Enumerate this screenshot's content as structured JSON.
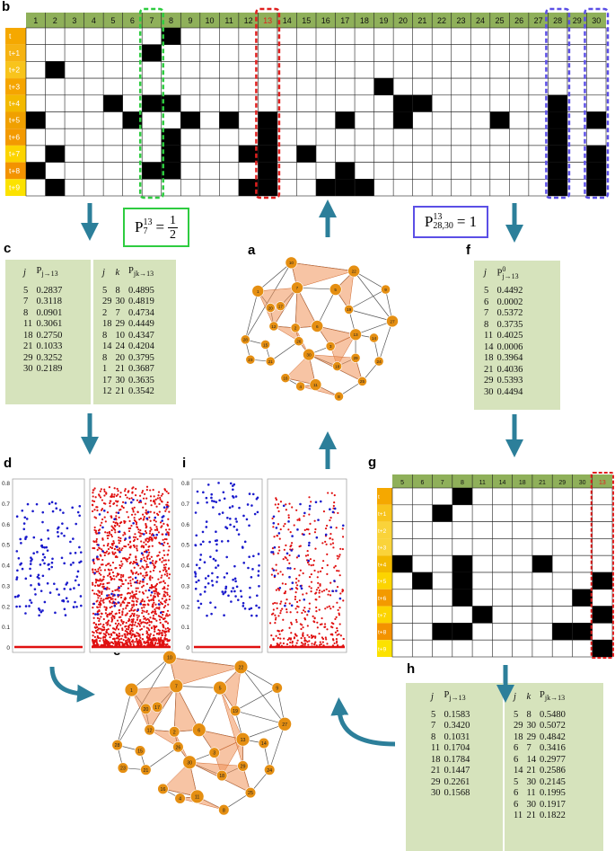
{
  "panel_labels": {
    "a": "a",
    "b": "b",
    "c": "c",
    "d": "d",
    "e": "e",
    "f": "f",
    "g": "g",
    "h": "h",
    "i": "i"
  },
  "grid_b": {
    "columns": [
      "1",
      "2",
      "3",
      "4",
      "5",
      "6",
      "7",
      "8",
      "9",
      "10",
      "11",
      "12",
      "13",
      "14",
      "15",
      "16",
      "17",
      "18",
      "19",
      "20",
      "21",
      "22",
      "23",
      "24",
      "25",
      "26",
      "27",
      "28",
      "29",
      "30"
    ],
    "highlight_column": "13",
    "rows": [
      "t",
      "t+1",
      "t+2",
      "t+3",
      "t+4",
      "t+5",
      "t+6",
      "t+7",
      "t+8",
      "t+9"
    ],
    "black_cells": [
      [
        7
      ],
      [
        6
      ],
      [
        1
      ],
      [
        18
      ],
      [
        4,
        6,
        7,
        19,
        20,
        27
      ],
      [
        0,
        5,
        8,
        10,
        12,
        16,
        19,
        24,
        27,
        29
      ],
      [
        7,
        12,
        27
      ],
      [
        1,
        7,
        11,
        12,
        14,
        27,
        29
      ],
      [
        0,
        6,
        7,
        12,
        16,
        27,
        29
      ],
      [
        1,
        11,
        12,
        15,
        16,
        17,
        27,
        29
      ]
    ],
    "row_colors": [
      "#f5a800",
      "#f6b312",
      "#f8c41c",
      "#f5a500",
      "#f3b900",
      "#f0a000",
      "#f39a00",
      "#fcd400",
      "#f39300",
      "#fce200"
    ]
  },
  "formula_green": {
    "P": "P",
    "sub": "7",
    "sup": "13",
    "eq": "=",
    "num": "1",
    "den": "2"
  },
  "formula_blue": {
    "P": "P",
    "sub": "28,30",
    "sup": "13",
    "eq": "= 1"
  },
  "table_c_left": {
    "header_j": "j",
    "header_p": "P",
    "header_p_sub": "j→13",
    "rows": [
      [
        "5",
        "0.2837"
      ],
      [
        "7",
        "0.3118"
      ],
      [
        "8",
        "0.0901"
      ],
      [
        "11",
        "0.3061"
      ],
      [
        "18",
        "0.2750"
      ],
      [
        "21",
        "0.1033"
      ],
      [
        "29",
        "0.3252"
      ],
      [
        "30",
        "0.2189"
      ]
    ]
  },
  "table_c_right": {
    "header_j": "j",
    "header_k": "k",
    "header_p": "P",
    "header_p_sub": "jk→13",
    "rows": [
      [
        "5",
        "8",
        "0.4895"
      ],
      [
        "29",
        "30",
        "0.4819"
      ],
      [
        "2",
        "7",
        "0.4734"
      ],
      [
        "18",
        "29",
        "0.4449"
      ],
      [
        "8",
        "10",
        "0.4347"
      ],
      [
        "14",
        "24",
        "0.4204"
      ],
      [
        "8",
        "20",
        "0.3795"
      ],
      [
        "1",
        "21",
        "0.3687"
      ],
      [
        "17",
        "30",
        "0.3635"
      ],
      [
        "12",
        "21",
        "0.3542"
      ]
    ]
  },
  "table_f": {
    "header_j": "j",
    "header_p": "P",
    "header_p_sup": "0",
    "header_p_sub": "j→13",
    "rows": [
      [
        "5",
        "0.4492"
      ],
      [
        "6",
        "0.0002"
      ],
      [
        "7",
        "0.5372"
      ],
      [
        "8",
        "0.3735"
      ],
      [
        "11",
        "0.4025"
      ],
      [
        "14",
        "0.0006"
      ],
      [
        "18",
        "0.3964"
      ],
      [
        "21",
        "0.4036"
      ],
      [
        "29",
        "0.5393"
      ],
      [
        "30",
        "0.4494"
      ]
    ]
  },
  "table_h_left": {
    "header_j": "j",
    "header_p": "P",
    "header_p_sub": "j→13",
    "rows": [
      [
        "5",
        "0.1583"
      ],
      [
        "7",
        "0.3420"
      ],
      [
        "8",
        "0.1031"
      ],
      [
        "11",
        "0.1704"
      ],
      [
        "18",
        "0.1784"
      ],
      [
        "21",
        "0.1447"
      ],
      [
        "29",
        "0.2261"
      ],
      [
        "30",
        "0.1568"
      ]
    ]
  },
  "table_h_right": {
    "header_j": "j",
    "header_k": "k",
    "header_p": "P",
    "header_p_sub": "jk→13",
    "rows": [
      [
        "5",
        "8",
        "0.5480"
      ],
      [
        "29",
        "30",
        "0.5072"
      ],
      [
        "18",
        "29",
        "0.4842"
      ],
      [
        "6",
        "7",
        "0.3416"
      ],
      [
        "6",
        "14",
        "0.2977"
      ],
      [
        "14",
        "21",
        "0.2586"
      ],
      [
        "5",
        "30",
        "0.2145"
      ],
      [
        "6",
        "11",
        "0.1995"
      ],
      [
        "6",
        "30",
        "0.1917"
      ],
      [
        "11",
        "21",
        "0.1822"
      ]
    ]
  },
  "grid_g": {
    "columns": [
      "5",
      "6",
      "7",
      "8",
      "11",
      "14",
      "18",
      "21",
      "29",
      "30",
      "13"
    ],
    "rows": [
      "t",
      "t+1",
      "t+2",
      "t+3",
      "t+4",
      "t+5",
      "t+6",
      "t+7",
      "t+8",
      "t+9"
    ],
    "black_cells": [
      [
        3
      ],
      [
        2
      ],
      [],
      [],
      [
        0,
        3,
        7
      ],
      [
        1,
        3,
        10
      ],
      [
        3,
        9
      ],
      [
        4,
        10
      ],
      [
        2,
        3,
        8,
        9
      ],
      [
        10
      ]
    ],
    "row_colors": [
      "#f5a800",
      "#f8c41c",
      "#fad33a",
      "#fad33a",
      "#f3b900",
      "#fcd400",
      "#f39a00",
      "#fcd400",
      "#f39300",
      "#fce200"
    ]
  },
  "scatter_axis_ticks": [
    "0.8",
    "0.7",
    "0.6",
    "0.5",
    "0.4",
    "0.3",
    "0.2",
    "0.1",
    "0"
  ],
  "network_nodes": [
    "1",
    "2",
    "3",
    "4",
    "5",
    "6",
    "7",
    "8",
    "9",
    "10",
    "11",
    "12",
    "13",
    "14",
    "15",
    "16",
    "17",
    "18",
    "19",
    "20",
    "21",
    "22",
    "23",
    "24",
    "25",
    "26",
    "27",
    "28",
    "29",
    "30"
  ],
  "colors": {
    "node": "#e58f12",
    "triangle": "#f0935a",
    "arrow": "#2c7f9a",
    "green_box": "#2ecc40",
    "blue_box": "#5b4fe6",
    "red_box": "#e0201f",
    "header_green": "#8fb05a",
    "table_green": "#d6e3bc",
    "blue_points": "#1a1acc",
    "red_points": "#e01010"
  }
}
